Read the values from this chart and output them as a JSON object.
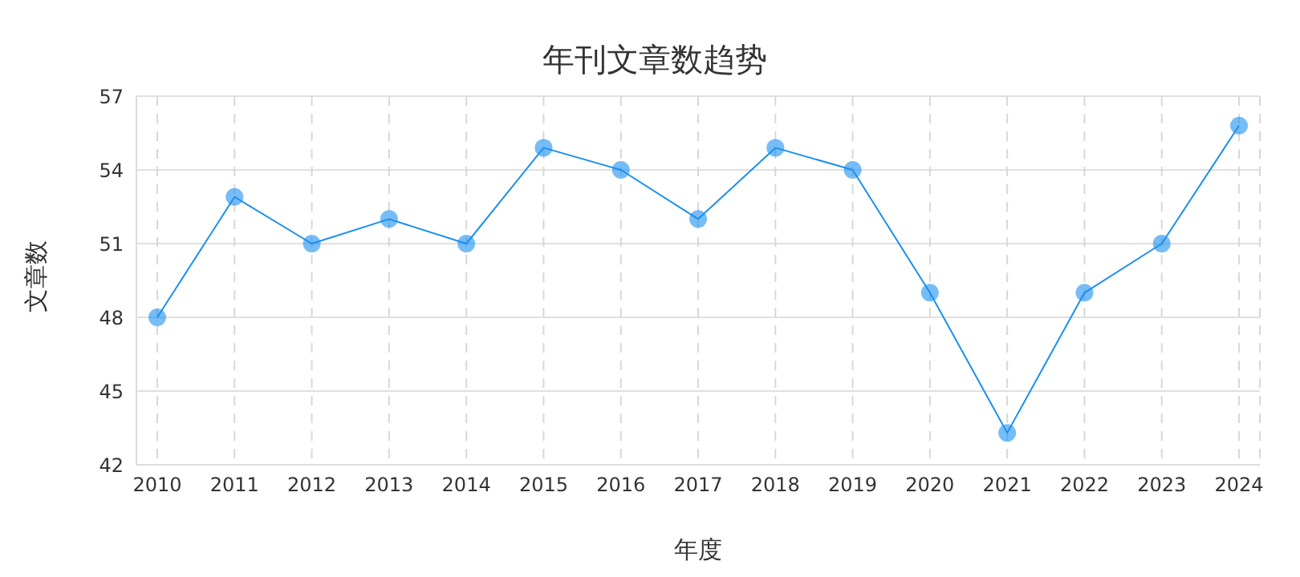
{
  "chart_data": {
    "type": "line",
    "title": "年刊文章数趋势",
    "xlabel": "年度",
    "ylabel": "文章数",
    "categories": [
      "2010",
      "2011",
      "2012",
      "2013",
      "2014",
      "2015",
      "2016",
      "2017",
      "2018",
      "2019",
      "2020",
      "2021",
      "2022",
      "2023",
      "2024"
    ],
    "values": [
      48,
      52.9,
      51,
      52,
      51,
      54.9,
      54,
      52,
      54.9,
      54,
      49,
      43.3,
      49,
      51,
      55.8
    ],
    "color": "#1a8ff0",
    "ylim": [
      42,
      57
    ],
    "yticks": [
      42,
      45,
      48,
      51,
      54,
      57
    ],
    "grid": true,
    "marker": "circle",
    "line_style": "solid"
  }
}
